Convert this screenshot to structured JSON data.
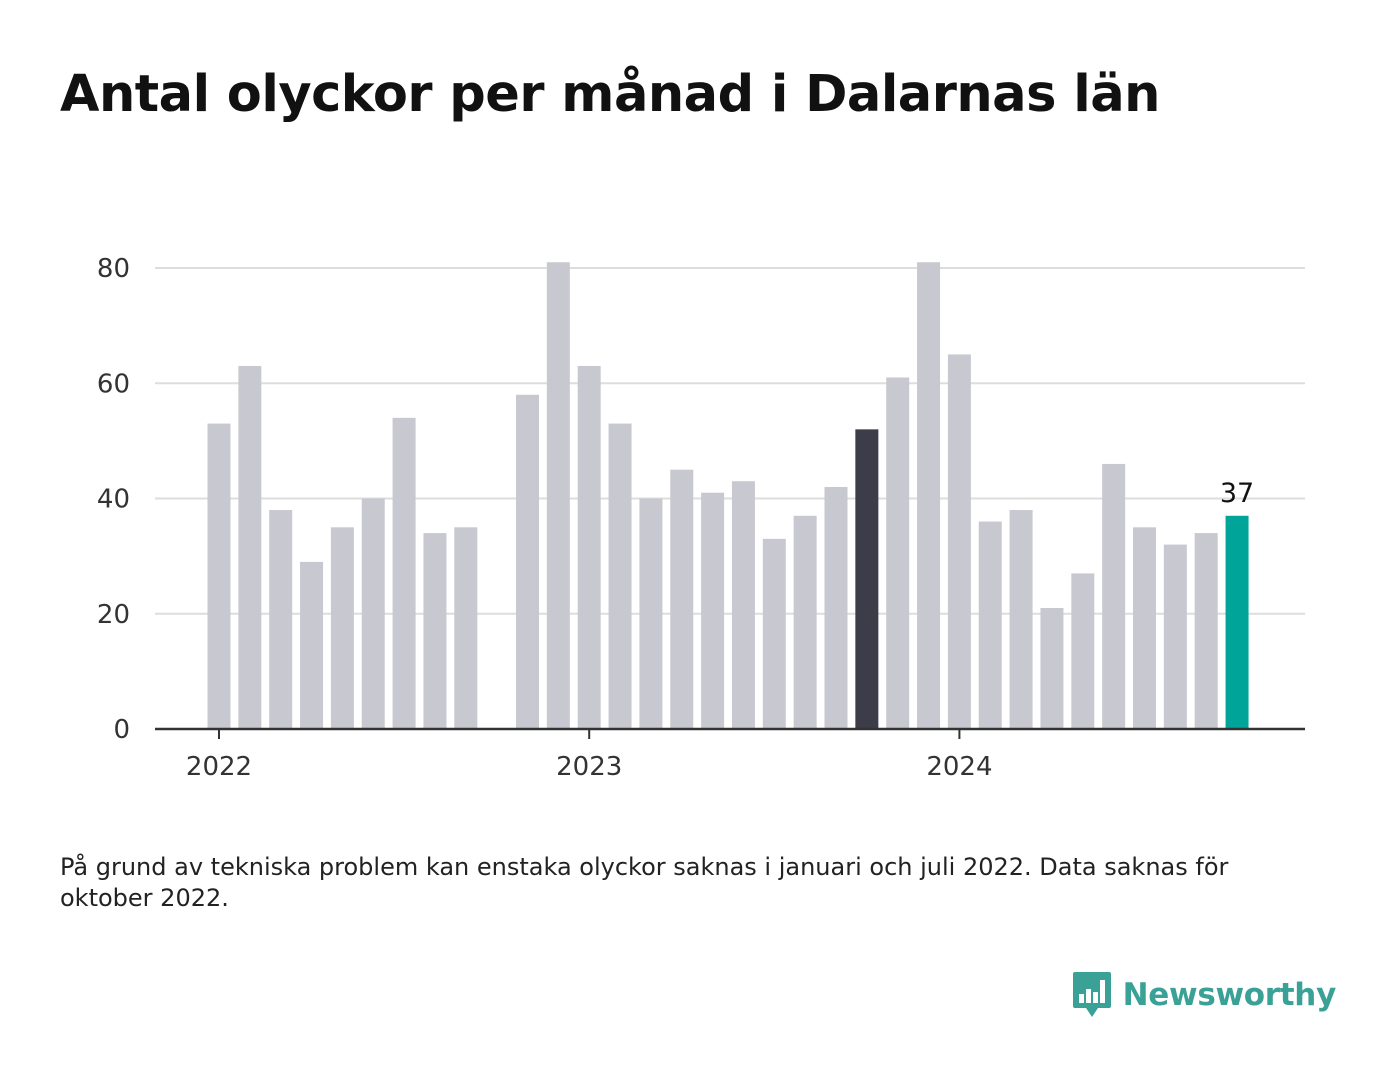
{
  "title": "Antal olyckor per månad i Dalarnas län",
  "note": "På grund av tekniska problem kan enstaka olyckor saknas i januari och juli 2022. Data saknas för oktober 2022.",
  "brand": {
    "name": "Newsworthy",
    "icon": "newsworthy-logo-icon",
    "color": "#3aa197"
  },
  "chart_data": {
    "type": "bar",
    "categories": [
      "2022-01",
      "2022-02",
      "2022-03",
      "2022-04",
      "2022-05",
      "2022-06",
      "2022-07",
      "2022-08",
      "2022-09",
      "2022-10",
      "2022-11",
      "2022-12",
      "2023-01",
      "2023-02",
      "2023-03",
      "2023-04",
      "2023-05",
      "2023-06",
      "2023-07",
      "2023-08",
      "2023-09",
      "2023-10",
      "2023-11",
      "2023-12",
      "2024-01",
      "2024-02",
      "2024-03",
      "2024-04",
      "2024-05",
      "2024-06",
      "2024-07",
      "2024-08",
      "2024-09",
      "2024-10"
    ],
    "values": [
      53,
      63,
      38,
      29,
      35,
      40,
      54,
      34,
      35,
      null,
      58,
      81,
      63,
      53,
      40,
      45,
      41,
      43,
      33,
      37,
      42,
      52,
      61,
      81,
      65,
      36,
      38,
      21,
      27,
      46,
      35,
      32,
      34,
      37
    ],
    "highlight": {
      "dark_index": 21,
      "latest_index": 33,
      "latest_label": "37"
    },
    "colors": {
      "default": "#c8c8d0",
      "dark": "#3d3d4a",
      "latest": "#00a499",
      "grid": "#dddddd",
      "axis": "#333333"
    },
    "xlabel": "",
    "ylabel": "",
    "ylim": [
      0,
      80
    ],
    "yticks": [
      0,
      20,
      40,
      60,
      80
    ],
    "xticks": [
      {
        "label": "2022",
        "at": "2022-01"
      },
      {
        "label": "2023",
        "at": "2023-01"
      },
      {
        "label": "2024",
        "at": "2024-01"
      }
    ],
    "grid": true,
    "legend": "none"
  }
}
